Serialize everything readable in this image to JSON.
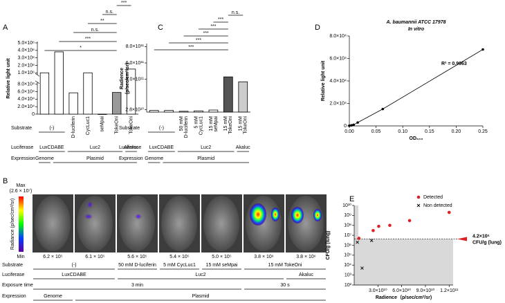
{
  "chart_data": [
    {
      "panel_label": "A",
      "type": "bar",
      "ylabel": "Relative light unit",
      "values": [
        1000000,
        3800000,
        57000,
        1000000,
        0,
        58000,
        1500000
      ],
      "colors": [
        "#ffffff",
        "#ffffff",
        "#ffffff",
        "#ffffff",
        "#ffffff",
        "#999999",
        "#ffffff"
      ],
      "ylim": [
        0,
        5000000
      ],
      "ybreak": [
        80000,
        1000000
      ],
      "yticks": [
        0,
        {
          "value": 20000,
          "label": "2.0×10⁴"
        },
        {
          "value": 40000,
          "label": "4.0×10⁴"
        },
        {
          "value": 60000,
          "label": "6.0×10⁴"
        },
        {
          "value": 80000,
          "label": "8.0×10⁴"
        },
        {
          "value": 1000000,
          "label": "1.0×10⁶"
        },
        {
          "value": 2000000,
          "label": "2.0×10⁶"
        },
        {
          "value": 3000000,
          "label": "3.0×10⁶"
        },
        {
          "value": 4000000,
          "label": "4.0×10⁶"
        },
        {
          "value": 5000000,
          "label": "5.0×10⁶"
        }
      ],
      "significance": [
        {
          "label": "***",
          "from": 5,
          "to": 6
        },
        {
          "label": "n.s.",
          "from": 4,
          "to": 5
        },
        {
          "label": "**",
          "from": 3,
          "to": 5
        },
        {
          "label": "n.s.",
          "from": 2,
          "to": 5
        },
        {
          "label": "***",
          "from": 1,
          "to": 5
        },
        {
          "label": "*",
          "from": 0,
          "to": 5
        }
      ],
      "rows": [
        {
          "name": "Substrate",
          "groups": [
            {
              "label": "(-)",
              "start": 0,
              "count": 2
            },
            {
              "label": "D-luciferin",
              "start": 2,
              "count": 1
            },
            {
              "label": "CycLuc1",
              "start": 3,
              "count": 1
            },
            {
              "label": "seMpai",
              "start": 4,
              "count": 1
            },
            {
              "label": "TokeOni",
              "start": 5,
              "count": 1,
              "color": "#e00000"
            },
            {
              "label": "TokeOni",
              "start": 6,
              "count": 1
            }
          ]
        },
        {
          "name": "Luciferase",
          "groups": [
            {
              "label": "LuxCDABE",
              "start": 0,
              "count": 2
            },
            {
              "label": "Luc2",
              "start": 2,
              "count": 4
            },
            {
              "label": "Akaluc",
              "start": 6,
              "count": 1
            }
          ]
        },
        {
          "name": "Expression",
          "groups": [
            {
              "label": "Genome",
              "start": 0,
              "count": 1
            },
            {
              "label": "Plasmid",
              "start": 1,
              "count": 6
            }
          ]
        }
      ]
    },
    {
      "panel_label": "C",
      "type": "bar",
      "ylabel": [
        "Radience",
        "(p/sec/cm²/sr)"
      ],
      "values": [
        20000000000,
        20000000000,
        10000000000,
        15000000000,
        25000000000,
        430000000000,
        370000000000
      ],
      "colors": [
        "#ffffff",
        "#ffffff",
        "#ffffff",
        "#ffffff",
        "#ffffff",
        "#555555",
        "#cccccc"
      ],
      "ylim": [
        0,
        820000000000
      ],
      "yticks": [
        {
          "value": 28000000000,
          "label": "2.8×10¹⁰"
        },
        {
          "value": 400000000000,
          "label": "4.0×10¹¹"
        },
        {
          "value": 600000000000,
          "label": "6.0×10¹¹"
        },
        {
          "value": 800000000000,
          "label": "8.0×10¹¹"
        }
      ],
      "significance": [
        {
          "label": "n.s.",
          "from": 5,
          "to": 6
        },
        {
          "label": "***",
          "from": 4,
          "to": 5
        },
        {
          "label": "***",
          "from": 3,
          "to": 5
        },
        {
          "label": "***",
          "from": 2,
          "to": 5
        },
        {
          "label": "***",
          "from": 1,
          "to": 5
        },
        {
          "label": "***",
          "from": 0,
          "to": 5
        }
      ],
      "rows": [
        {
          "name": "Substrate",
          "groups": [
            {
              "label": "(-)",
              "start": 0,
              "count": 2
            },
            {
              "label": [
                "50 mM",
                "D-luciferin"
              ],
              "start": 2,
              "count": 1
            },
            {
              "label": [
                "5 mM",
                "CycLuc1"
              ],
              "start": 3,
              "count": 1
            },
            {
              "label": [
                "15 mM",
                "seMpai"
              ],
              "start": 4,
              "count": 1
            },
            {
              "label": [
                "15 mM",
                "TokeOni"
              ],
              "start": 5,
              "count": 1,
              "color": "#e00000"
            },
            {
              "label": [
                "15 mM",
                "TokeOni"
              ],
              "start": 6,
              "count": 1
            }
          ]
        },
        {
          "name": "Luciferase",
          "groups": [
            {
              "label": "LuxCDABE",
              "start": 0,
              "count": 2
            },
            {
              "label": "Luc2",
              "start": 2,
              "count": 4
            },
            {
              "label": "Akaluc",
              "start": 6,
              "count": 1
            }
          ]
        },
        {
          "name": "Expression",
          "groups": [
            {
              "label": "Genome",
              "start": 0,
              "count": 1
            },
            {
              "label": "Plasmid",
              "start": 1,
              "count": 6
            }
          ]
        }
      ]
    },
    {
      "panel_label": "D",
      "type": "line",
      "title": "A. baumannii ATCC 17978",
      "subtitle": "In vitro",
      "xlabel": "OD₆₀₀",
      "ylabel": "Relative light unit",
      "annotation": "R² = 0.9963",
      "x": [
        0,
        0.004,
        0.008,
        0.0156,
        0.0625,
        0.25
      ],
      "values": [
        200,
        500,
        1000,
        3000,
        15000,
        68000
      ],
      "color": "#000000",
      "xlim": [
        0,
        0.25
      ],
      "xticks": [
        {
          "value": 0,
          "label": "0.00"
        },
        {
          "value": 0.05,
          "label": "0.05"
        },
        {
          "value": 0.1,
          "label": "0.10"
        },
        {
          "value": 0.15,
          "label": "0.15"
        },
        {
          "value": 0.2,
          "label": "0.20"
        },
        {
          "value": 0.25,
          "label": "0.25"
        }
      ],
      "ylim": [
        0,
        80000
      ],
      "yticks": [
        0,
        {
          "value": 20000,
          "label": "2.0×10⁴"
        },
        {
          "value": 40000,
          "label": "4.0×10⁴"
        },
        {
          "value": 60000,
          "label": "6.0×10⁴"
        },
        {
          "value": 80000,
          "label": "8.0×10⁴"
        }
      ]
    },
    {
      "panel_label": "E",
      "type": "scatter",
      "xlabel": "Radience（p/sec/cm²/sr)",
      "ylabel": "CFU/g (lung)",
      "series": [
        {
          "name": "Detected",
          "marker": "o",
          "color": "#e02020",
          "x": [
            6000000000,
            24000000000,
            31000000000,
            45000000000,
            70000000000,
            120000000000
          ],
          "values": [
            5000000,
            30000000,
            80000000,
            100000000,
            300000000,
            2000000000
          ]
        },
        {
          "name": "Non detected",
          "marker": "x",
          "color": "#000000",
          "x": [
            4000000000,
            10000000000,
            22000000000
          ],
          "values": [
            2000000,
            5000,
            3000000
          ]
        }
      ],
      "threshold": 4200000,
      "threshold_label": [
        "4.2×10⁶",
        "CFU/g (lung)"
      ],
      "legend": "upper right",
      "log_y": true,
      "xlim": [
        0,
        125000000000
      ],
      "xticks": [
        {
          "value": 30000000000,
          "label": "3.0×10¹⁰"
        },
        {
          "value": 60000000000,
          "label": "6.0×10¹⁰"
        },
        {
          "value": 90000000000,
          "label": "9.0×10¹⁰"
        },
        {
          "value": 120000000000,
          "label": "1.2×10¹¹"
        }
      ],
      "ylim": [
        100,
        10000000000
      ],
      "yticks": [
        {
          "value": 100,
          "label": "10²"
        },
        {
          "value": 1000,
          "label": "10³"
        },
        {
          "value": 10000,
          "label": "10⁴"
        },
        {
          "value": 100000,
          "label": "10⁵"
        },
        {
          "value": 1000000,
          "label": "10⁶"
        },
        {
          "value": 10000000,
          "label": "10⁷"
        },
        {
          "value": 100000000,
          "label": "10⁸"
        },
        {
          "value": 1000000000,
          "label": "10⁹"
        },
        {
          "value": 10000000000,
          "label": "10¹⁰"
        }
      ]
    }
  ],
  "panel_b": {
    "panel_label": "B",
    "colorbar": {
      "max": "Max",
      "max_value": "(2.6 × 10⁷)",
      "label": "Radiance (p/sec/cm²/sr)",
      "min": "Min"
    },
    "image_values": [
      "6.2 × 10⁵",
      "6.1 × 10⁵",
      "5.6 × 10⁵",
      "5.4 × 10⁵",
      "5.0 × 10⁵",
      "3.8 × 10⁶",
      "3.8 × 10⁶"
    ],
    "rows": [
      {
        "name": "Substrate",
        "groups": [
          {
            "label": "(-)",
            "start": 0,
            "count": 2
          },
          {
            "label": "50 mM D-luciferin",
            "start": 2,
            "count": 1
          },
          {
            "label": "5 mM CycLuc1",
            "start": 3,
            "count": 1
          },
          {
            "label": "15 mM seMpai",
            "start": 4,
            "count": 1
          },
          {
            "label": "15 mM TokeOni",
            "start": 5,
            "count": 2
          }
        ]
      },
      {
        "name": "Luciferase",
        "groups": [
          {
            "label": "LuxCDABE",
            "start": 0,
            "count": 2
          },
          {
            "label": "Luc2",
            "start": 2,
            "count": 4
          },
          {
            "label": "Akaluc",
            "start": 6,
            "count": 1
          }
        ]
      },
      {
        "name": "Exposure time",
        "groups": [
          {
            "label": "3 min",
            "start": 0,
            "count": 5
          },
          {
            "label": "30 s",
            "start": 5,
            "count": 2
          }
        ]
      },
      {
        "name": "Expression",
        "groups": [
          {
            "label": "Genome",
            "start": 0,
            "count": 1
          },
          {
            "label": "Plasmid",
            "start": 1,
            "count": 6
          }
        ]
      }
    ]
  }
}
